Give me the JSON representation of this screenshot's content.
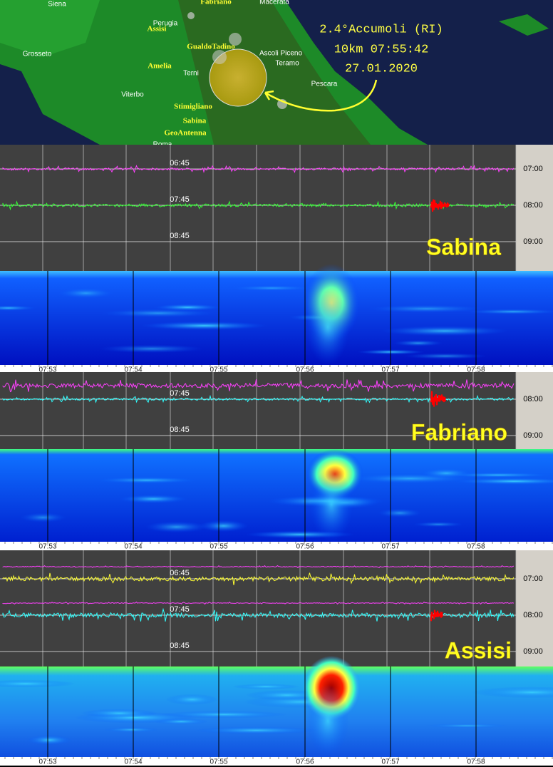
{
  "map": {
    "cities": [
      "Siena",
      "Fabriano",
      "Macerata",
      "Assisi",
      "Perugia",
      "Grosseto",
      "GualdoTadino",
      "Amelia",
      "Terni",
      "Ascoli Piceno",
      "Teramo",
      "Pescara",
      "Viterbo",
      "Stimigliano",
      "Sabina",
      "GeoAntenna",
      "Roma"
    ],
    "annotation": [
      "2.4°Accumoli (RI)",
      "10km 07:55:42",
      "27.01.2020"
    ]
  },
  "panels": [
    {
      "station": "Sabina",
      "left_labels": [
        "06:45",
        "07:45",
        "08:45"
      ],
      "right_labels": [
        "07:00",
        "08:00",
        "09:00"
      ],
      "time_labels": [
        "07:53",
        "07:54",
        "07:55",
        "07:56",
        "07:57",
        "07:58"
      ]
    },
    {
      "station": "Fabriano",
      "left_labels": [
        "07:45",
        "08:45"
      ],
      "right_labels": [
        "08:00",
        "09:00"
      ],
      "time_labels": [
        "07:53",
        "07:54",
        "07:55",
        "07:56",
        "07:57",
        "07:58"
      ]
    },
    {
      "station": "Assisi",
      "left_labels": [
        "06:45",
        "07:45",
        "08:45"
      ],
      "right_labels": [
        "07:00",
        "08:00",
        "09:00"
      ],
      "time_labels": [
        "07:53",
        "07:54",
        "07:55",
        "07:56",
        "07:57",
        "07:58"
      ]
    }
  ]
}
